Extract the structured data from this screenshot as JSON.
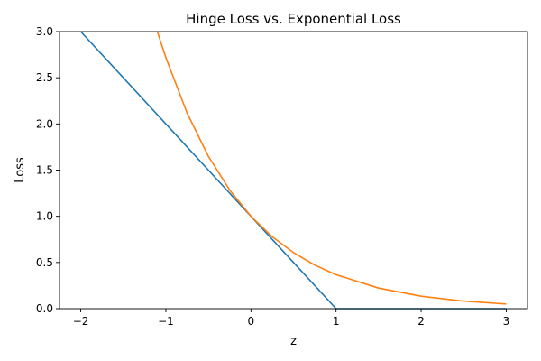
{
  "chart_data": {
    "type": "line",
    "title": "Hinge Loss vs. Exponential Loss",
    "xlabel": "z",
    "ylabel": "Loss",
    "xlim": [
      -2.25,
      3.25
    ],
    "ylim": [
      0,
      3.0
    ],
    "xticks": [
      -2,
      -1,
      0,
      1,
      2,
      3
    ],
    "xtick_labels": [
      "−2",
      "−1",
      "0",
      "1",
      "2",
      "3"
    ],
    "yticks": [
      0,
      0.5,
      1.0,
      1.5,
      2.0,
      2.5,
      3.0
    ],
    "ytick_labels": [
      "0.0",
      "0.5",
      "1.0",
      "1.5",
      "2.0",
      "2.5",
      "3.0"
    ],
    "grid": false,
    "legend": false,
    "series": [
      {
        "color": "#1f77b4",
        "x": [
          -2,
          -1,
          0,
          0.5,
          1,
          2,
          3
        ],
        "y": [
          3,
          2,
          1,
          0.5,
          0,
          0,
          0
        ]
      },
      {
        "color": "#ff7f0e",
        "x": [
          -1.1,
          -1.0,
          -0.75,
          -0.5,
          -0.25,
          0,
          0.25,
          0.5,
          0.75,
          1.0,
          1.5,
          2.0,
          2.5,
          3.0
        ],
        "y": [
          3.0,
          2.718,
          2.117,
          1.649,
          1.284,
          1.0,
          0.779,
          0.607,
          0.472,
          0.368,
          0.223,
          0.135,
          0.082,
          0.05
        ]
      }
    ]
  }
}
